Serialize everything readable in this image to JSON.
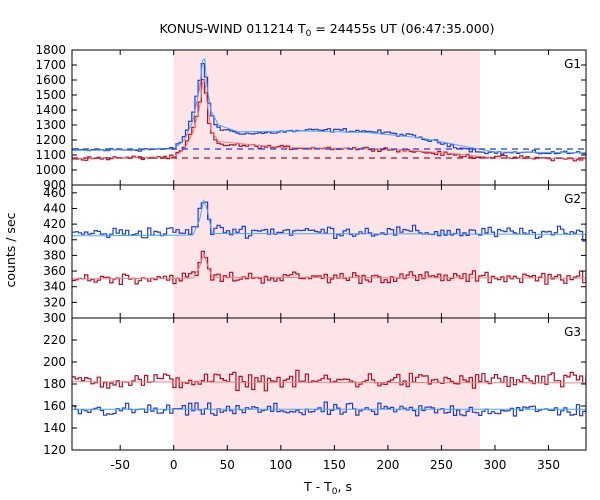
{
  "title": {
    "main": "KONUS-WIND 011214 T",
    "sub": "0",
    "rest": " = 24455s UT (06:47:35.000)"
  },
  "xlabel": {
    "main": "T - T",
    "sub": "0",
    "rest": ", s"
  },
  "ylabel": "counts / sec",
  "colors": {
    "highlight_band": "#fde4e6",
    "series_blue": "#1f3fd0",
    "series_red": "#b0102a",
    "fit_blue": "#4aa8ff",
    "fit_red": "#f08080",
    "background_blue": "#1f3fd0",
    "background_red": "#b0102a",
    "frame": "#000000"
  },
  "chart_data": {
    "type": "line",
    "x_range": [
      -95,
      385
    ],
    "x_ticks": [
      -50,
      0,
      50,
      100,
      150,
      200,
      250,
      300,
      350
    ],
    "highlight_interval": [
      0,
      286
    ],
    "bin_width": 2.944,
    "panels": [
      {
        "label": "G1",
        "ylim": [
          900,
          1800
        ],
        "y_ticks": [
          900,
          1000,
          1100,
          1200,
          1300,
          1400,
          1500,
          1600,
          1700,
          1800
        ],
        "series": [
          {
            "color": "series_blue",
            "role": "counts",
            "profile": [
              [
                -95,
                1130
              ],
              [
                0,
                1140
              ],
              [
                8,
                1200
              ],
              [
                14,
                1290
              ],
              [
                20,
                1430
              ],
              [
                24,
                1580
              ],
              [
                26,
                1700
              ],
              [
                28,
                1730
              ],
              [
                30,
                1620
              ],
              [
                33,
                1440
              ],
              [
                38,
                1310
              ],
              [
                45,
                1270
              ],
              [
                70,
                1240
              ],
              [
                100,
                1255
              ],
              [
                130,
                1265
              ],
              [
                160,
                1265
              ],
              [
                190,
                1255
              ],
              [
                220,
                1230
              ],
              [
                250,
                1180
              ],
              [
                280,
                1130
              ],
              [
                300,
                1115
              ],
              [
                385,
                1115
              ]
            ],
            "noise": 18
          },
          {
            "color": "series_red",
            "role": "counts",
            "profile": [
              [
                -95,
                1075
              ],
              [
                0,
                1085
              ],
              [
                8,
                1130
              ],
              [
                14,
                1210
              ],
              [
                20,
                1310
              ],
              [
                24,
                1440
              ],
              [
                26,
                1560
              ],
              [
                28,
                1610
              ],
              [
                30,
                1520
              ],
              [
                33,
                1310
              ],
              [
                38,
                1200
              ],
              [
                45,
                1170
              ],
              [
                100,
                1150
              ],
              [
                200,
                1140
              ],
              [
                280,
                1090
              ],
              [
                385,
                1070
              ]
            ],
            "noise": 18
          },
          {
            "color": "fit_blue",
            "role": "model",
            "profile": [
              [
                -95,
                1130
              ],
              [
                0,
                1140
              ],
              [
                10,
                1200
              ],
              [
                18,
                1330
              ],
              [
                24,
                1540
              ],
              [
                27,
                1730
              ],
              [
                29,
                1740
              ],
              [
                31,
                1560
              ],
              [
                35,
                1390
              ],
              [
                42,
                1300
              ],
              [
                60,
                1255
              ],
              [
                120,
                1260
              ],
              [
                180,
                1250
              ],
              [
                230,
                1215
              ],
              [
                270,
                1160
              ],
              [
                300,
                1120
              ],
              [
                385,
                1115
              ]
            ]
          },
          {
            "color": "fit_red",
            "role": "model",
            "profile": [
              [
                -95,
                1078
              ],
              [
                0,
                1085
              ],
              [
                10,
                1140
              ],
              [
                18,
                1250
              ],
              [
                24,
                1410
              ],
              [
                27,
                1580
              ],
              [
                29,
                1600
              ],
              [
                31,
                1460
              ],
              [
                35,
                1260
              ],
              [
                42,
                1190
              ],
              [
                100,
                1150
              ],
              [
                200,
                1140
              ],
              [
                260,
                1110
              ],
              [
                300,
                1080
              ],
              [
                385,
                1075
              ]
            ]
          },
          {
            "color": "background_blue",
            "role": "background",
            "dashed": true,
            "value": 1140
          },
          {
            "color": "background_red",
            "role": "background",
            "dashed": true,
            "value": 1080
          }
        ]
      },
      {
        "label": "G2",
        "ylim": [
          300,
          470
        ],
        "y_ticks": [
          300,
          320,
          340,
          360,
          380,
          400,
          420,
          440,
          460
        ],
        "series": [
          {
            "color": "series_blue",
            "role": "counts",
            "profile": [
              [
                -95,
                408
              ],
              [
                18,
                410
              ],
              [
                22,
                425
              ],
              [
                26,
                445
              ],
              [
                29,
                455
              ],
              [
                32,
                430
              ],
              [
                36,
                412
              ],
              [
                385,
                408
              ]
            ],
            "noise": 11
          },
          {
            "color": "series_red",
            "role": "counts",
            "profile": [
              [
                -95,
                350
              ],
              [
                18,
                352
              ],
              [
                22,
                362
              ],
              [
                26,
                378
              ],
              [
                29,
                385
              ],
              [
                32,
                362
              ],
              [
                36,
                352
              ],
              [
                385,
                352
              ]
            ],
            "noise": 11
          },
          {
            "color": "fit_blue",
            "role": "model",
            "profile": [
              [
                -95,
                405
              ],
              [
                18,
                406
              ],
              [
                24,
                425
              ],
              [
                28,
                450
              ],
              [
                31,
                440
              ],
              [
                36,
                408
              ],
              [
                385,
                407
              ]
            ]
          },
          {
            "color": "fit_red",
            "role": "model",
            "profile": [
              [
                -95,
                350
              ],
              [
                18,
                351
              ],
              [
                24,
                365
              ],
              [
                28,
                383
              ],
              [
                31,
                370
              ],
              [
                36,
                352
              ],
              [
                385,
                351
              ]
            ]
          }
        ]
      },
      {
        "label": "G3",
        "ylim": [
          120,
          240
        ],
        "y_ticks": [
          120,
          140,
          160,
          180,
          200,
          220
        ],
        "series": [
          {
            "color": "series_red",
            "role": "counts",
            "profile": [
              [
                -95,
                183
              ],
              [
                385,
                183
              ]
            ],
            "noise": 11
          },
          {
            "color": "series_blue",
            "role": "counts",
            "profile": [
              [
                -95,
                156
              ],
              [
                385,
                156
              ]
            ],
            "noise": 9
          },
          {
            "color": "fit_red",
            "role": "model",
            "profile": [
              [
                -95,
                182
              ],
              [
                385,
                181
              ]
            ]
          },
          {
            "color": "fit_blue",
            "role": "model",
            "profile": [
              [
                -95,
                157
              ],
              [
                385,
                157
              ]
            ]
          }
        ]
      }
    ]
  }
}
